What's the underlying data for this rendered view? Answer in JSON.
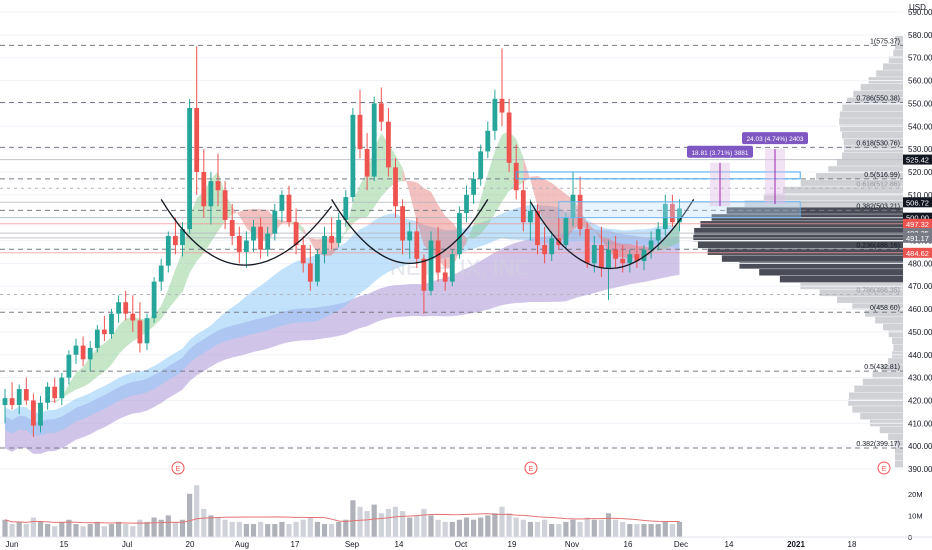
{
  "chart_data": {
    "type": "candlestick",
    "title": "",
    "watermark": "NETFLIX, INC",
    "currency": "USD",
    "y_axis": {
      "min": 390,
      "max": 590,
      "ticks": [
        390,
        400,
        410,
        420,
        430,
        440,
        450,
        460,
        470,
        480,
        490,
        500,
        510,
        520,
        530,
        540,
        550,
        560,
        570,
        580,
        590
      ]
    },
    "x_axis": {
      "labels": [
        "Jun",
        "15",
        "Jul",
        "20",
        "Aug",
        "17",
        "Sep",
        "14",
        "Oct",
        "19",
        "Nov",
        "16",
        "Dec",
        "14",
        "2021",
        "18"
      ]
    },
    "fib_levels": [
      {
        "label": "1(575.37)",
        "value": 575.37
      },
      {
        "label": "0.786(550.38)",
        "value": 550.38
      },
      {
        "label": "0.618(530.76)",
        "value": 530.76
      },
      {
        "label": "0.5(516.99)",
        "value": 516.99
      },
      {
        "label": "0.382(503.21)",
        "value": 503.21
      },
      {
        "label": "0.236(486.16)",
        "value": 486.16
      },
      {
        "label": "0(458.60)",
        "value": 458.6
      },
      {
        "label": "0.5(432.81)",
        "value": 432.81
      },
      {
        "label": "0.382(399.17)",
        "value": 399.17
      }
    ],
    "faint_levels": [
      {
        "label": "0.618(512.86)",
        "value": 512.86
      },
      {
        "label": "0.786(466.35)",
        "value": 466.35
      }
    ],
    "price_tags": [
      {
        "text": "525.42",
        "value": 525.42,
        "color": "#131722"
      },
      {
        "text": "506.72",
        "value": 506.72,
        "color": "#131722"
      },
      {
        "text": "500.00",
        "value": 500.0,
        "color": "#131722"
      },
      {
        "text": "497.32",
        "value": 497.32,
        "color": "#ef5350"
      },
      {
        "text": "493.25",
        "value": 493.25,
        "color": "#787b86"
      },
      {
        "text": "491.17",
        "value": 491.17,
        "color": "#787b86"
      },
      {
        "text": "484.62",
        "value": 484.62,
        "color": "#ef5350"
      }
    ],
    "measure_labels": [
      {
        "text": "18.81 (3.71%) 3881",
        "from": 505,
        "to": 524
      },
      {
        "text": "24.03 (4.74%) 2403",
        "from": 506,
        "to": 530
      }
    ],
    "earnings_markers": [
      "E",
      "E",
      "E"
    ],
    "volume": {
      "ticks": [
        "20M",
        "10M",
        "0"
      ],
      "max": 25
    },
    "candles": [
      {
        "o": 418,
        "h": 425,
        "l": 410,
        "c": 421
      },
      {
        "o": 421,
        "h": 428,
        "l": 416,
        "c": 418
      },
      {
        "o": 418,
        "h": 427,
        "l": 414,
        "c": 425
      },
      {
        "o": 425,
        "h": 430,
        "l": 418,
        "c": 420
      },
      {
        "o": 420,
        "h": 423,
        "l": 404,
        "c": 409
      },
      {
        "o": 409,
        "h": 422,
        "l": 406,
        "c": 419
      },
      {
        "o": 419,
        "h": 428,
        "l": 416,
        "c": 426
      },
      {
        "o": 426,
        "h": 430,
        "l": 419,
        "c": 421
      },
      {
        "o": 421,
        "h": 432,
        "l": 418,
        "c": 430
      },
      {
        "o": 430,
        "h": 442,
        "l": 427,
        "c": 440
      },
      {
        "o": 440,
        "h": 447,
        "l": 436,
        "c": 444
      },
      {
        "o": 444,
        "h": 448,
        "l": 435,
        "c": 438
      },
      {
        "o": 438,
        "h": 446,
        "l": 433,
        "c": 443
      },
      {
        "o": 443,
        "h": 453,
        "l": 441,
        "c": 451
      },
      {
        "o": 451,
        "h": 457,
        "l": 446,
        "c": 449
      },
      {
        "o": 449,
        "h": 460,
        "l": 447,
        "c": 458
      },
      {
        "o": 458,
        "h": 466,
        "l": 454,
        "c": 463
      },
      {
        "o": 463,
        "h": 468,
        "l": 455,
        "c": 458
      },
      {
        "o": 458,
        "h": 466,
        "l": 450,
        "c": 455
      },
      {
        "o": 455,
        "h": 463,
        "l": 441,
        "c": 445
      },
      {
        "o": 445,
        "h": 458,
        "l": 442,
        "c": 456
      },
      {
        "o": 456,
        "h": 474,
        "l": 454,
        "c": 472
      },
      {
        "o": 472,
        "h": 482,
        "l": 468,
        "c": 479
      },
      {
        "o": 479,
        "h": 494,
        "l": 476,
        "c": 492
      },
      {
        "o": 492,
        "h": 500,
        "l": 484,
        "c": 488
      },
      {
        "o": 488,
        "h": 498,
        "l": 483,
        "c": 495
      },
      {
        "o": 495,
        "h": 552,
        "l": 493,
        "c": 548
      },
      {
        "o": 548,
        "h": 575,
        "l": 510,
        "c": 520
      },
      {
        "o": 520,
        "h": 530,
        "l": 500,
        "c": 505
      },
      {
        "o": 505,
        "h": 520,
        "l": 497,
        "c": 516
      },
      {
        "o": 516,
        "h": 528,
        "l": 505,
        "c": 512
      },
      {
        "o": 512,
        "h": 516,
        "l": 495,
        "c": 499
      },
      {
        "o": 499,
        "h": 506,
        "l": 488,
        "c": 492
      },
      {
        "o": 492,
        "h": 496,
        "l": 480,
        "c": 485
      },
      {
        "o": 485,
        "h": 494,
        "l": 478,
        "c": 490
      },
      {
        "o": 490,
        "h": 499,
        "l": 485,
        "c": 496
      },
      {
        "o": 496,
        "h": 500,
        "l": 482,
        "c": 486
      },
      {
        "o": 486,
        "h": 496,
        "l": 483,
        "c": 493
      },
      {
        "o": 493,
        "h": 506,
        "l": 490,
        "c": 503
      },
      {
        "o": 503,
        "h": 512,
        "l": 498,
        "c": 510
      },
      {
        "o": 510,
        "h": 514,
        "l": 496,
        "c": 498
      },
      {
        "o": 498,
        "h": 504,
        "l": 484,
        "c": 488
      },
      {
        "o": 488,
        "h": 492,
        "l": 476,
        "c": 480
      },
      {
        "o": 480,
        "h": 488,
        "l": 468,
        "c": 472
      },
      {
        "o": 472,
        "h": 486,
        "l": 470,
        "c": 484
      },
      {
        "o": 484,
        "h": 496,
        "l": 480,
        "c": 492
      },
      {
        "o": 492,
        "h": 500,
        "l": 486,
        "c": 489
      },
      {
        "o": 489,
        "h": 502,
        "l": 487,
        "c": 499
      },
      {
        "o": 499,
        "h": 512,
        "l": 496,
        "c": 509
      },
      {
        "o": 509,
        "h": 548,
        "l": 507,
        "c": 545
      },
      {
        "o": 545,
        "h": 556,
        "l": 526,
        "c": 530
      },
      {
        "o": 530,
        "h": 537,
        "l": 512,
        "c": 518
      },
      {
        "o": 518,
        "h": 553,
        "l": 516,
        "c": 550
      },
      {
        "o": 550,
        "h": 557,
        "l": 538,
        "c": 542
      },
      {
        "o": 542,
        "h": 548,
        "l": 518,
        "c": 522
      },
      {
        "o": 522,
        "h": 526,
        "l": 500,
        "c": 505
      },
      {
        "o": 505,
        "h": 508,
        "l": 484,
        "c": 490
      },
      {
        "o": 490,
        "h": 498,
        "l": 482,
        "c": 494
      },
      {
        "o": 494,
        "h": 500,
        "l": 478,
        "c": 482
      },
      {
        "o": 482,
        "h": 484,
        "l": 458,
        "c": 468
      },
      {
        "o": 468,
        "h": 494,
        "l": 466,
        "c": 490
      },
      {
        "o": 490,
        "h": 496,
        "l": 472,
        "c": 476
      },
      {
        "o": 476,
        "h": 482,
        "l": 468,
        "c": 472
      },
      {
        "o": 472,
        "h": 486,
        "l": 470,
        "c": 484
      },
      {
        "o": 484,
        "h": 505,
        "l": 482,
        "c": 502
      },
      {
        "o": 502,
        "h": 514,
        "l": 498,
        "c": 510
      },
      {
        "o": 510,
        "h": 520,
        "l": 506,
        "c": 517
      },
      {
        "o": 517,
        "h": 532,
        "l": 514,
        "c": 529
      },
      {
        "o": 529,
        "h": 542,
        "l": 526,
        "c": 538
      },
      {
        "o": 538,
        "h": 556,
        "l": 534,
        "c": 552
      },
      {
        "o": 552,
        "h": 574,
        "l": 540,
        "c": 546
      },
      {
        "o": 546,
        "h": 552,
        "l": 520,
        "c": 524
      },
      {
        "o": 524,
        "h": 532,
        "l": 508,
        "c": 512
      },
      {
        "o": 512,
        "h": 516,
        "l": 494,
        "c": 498
      },
      {
        "o": 498,
        "h": 508,
        "l": 490,
        "c": 503
      },
      {
        "o": 503,
        "h": 506,
        "l": 484,
        "c": 488
      },
      {
        "o": 488,
        "h": 496,
        "l": 480,
        "c": 484
      },
      {
        "o": 484,
        "h": 494,
        "l": 481,
        "c": 491
      },
      {
        "o": 491,
        "h": 500,
        "l": 486,
        "c": 488
      },
      {
        "o": 488,
        "h": 502,
        "l": 486,
        "c": 500
      },
      {
        "o": 500,
        "h": 520,
        "l": 496,
        "c": 510
      },
      {
        "o": 510,
        "h": 518,
        "l": 492,
        "c": 495
      },
      {
        "o": 495,
        "h": 498,
        "l": 478,
        "c": 480
      },
      {
        "o": 480,
        "h": 492,
        "l": 476,
        "c": 488
      },
      {
        "o": 488,
        "h": 496,
        "l": 474,
        "c": 478
      },
      {
        "o": 478,
        "h": 490,
        "l": 464,
        "c": 486
      },
      {
        "o": 486,
        "h": 492,
        "l": 478,
        "c": 482
      },
      {
        "o": 482,
        "h": 488,
        "l": 476,
        "c": 480
      },
      {
        "o": 480,
        "h": 486,
        "l": 476,
        "c": 484
      },
      {
        "o": 484,
        "h": 490,
        "l": 478,
        "c": 481
      },
      {
        "o": 481,
        "h": 488,
        "l": 477,
        "c": 486
      },
      {
        "o": 486,
        "h": 494,
        "l": 482,
        "c": 490
      },
      {
        "o": 490,
        "h": 498,
        "l": 486,
        "c": 495
      },
      {
        "o": 495,
        "h": 510,
        "l": 492,
        "c": 506
      },
      {
        "o": 506,
        "h": 510,
        "l": 496,
        "c": 498
      },
      {
        "o": 498,
        "h": 508,
        "l": 494,
        "c": 504
      }
    ],
    "volumes": [
      8,
      6,
      7,
      6,
      9,
      7,
      6,
      5,
      7,
      8,
      6,
      5,
      6,
      7,
      5,
      6,
      7,
      6,
      5,
      8,
      7,
      9,
      8,
      10,
      7,
      8,
      20,
      24,
      13,
      10,
      9,
      8,
      7,
      7,
      6,
      6,
      7,
      6,
      6,
      7,
      6,
      7,
      8,
      9,
      7,
      6,
      6,
      7,
      8,
      17,
      14,
      12,
      15,
      11,
      13,
      14,
      12,
      9,
      10,
      13,
      10,
      8,
      7,
      7,
      8,
      9,
      8,
      9,
      10,
      11,
      14,
      11,
      9,
      8,
      7,
      7,
      8,
      6,
      6,
      7,
      8,
      7,
      9,
      8,
      8,
      11,
      8,
      7,
      6,
      6,
      6,
      6,
      6,
      7,
      6,
      7
    ]
  }
}
